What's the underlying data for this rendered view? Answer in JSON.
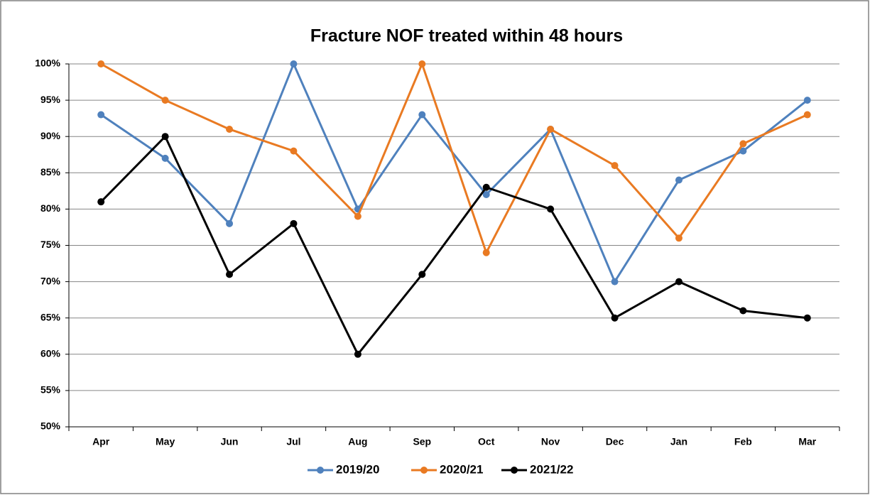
{
  "chart_data": {
    "type": "line",
    "title": "Fracture NOF treated within 48 hours",
    "categories": [
      "Apr",
      "May",
      "Jun",
      "Jul",
      "Aug",
      "Sep",
      "Oct",
      "Nov",
      "Dec",
      "Jan",
      "Feb",
      "Mar"
    ],
    "series": [
      {
        "name": "2019/20",
        "color": "#4f81bd",
        "values": [
          93,
          87,
          78,
          100,
          80,
          93,
          82,
          91,
          70,
          84,
          88,
          95
        ]
      },
      {
        "name": "2020/21",
        "color": "#e97a22",
        "values": [
          100,
          95,
          91,
          88,
          79,
          100,
          74,
          91,
          86,
          76,
          89,
          93
        ]
      },
      {
        "name": "2021/22",
        "color": "#000000",
        "values": [
          81,
          90,
          71,
          78,
          60,
          71,
          83,
          80,
          65,
          70,
          66,
          65
        ]
      }
    ],
    "ylim": [
      50,
      100
    ],
    "yticks": [
      {
        "value": 50,
        "label": "50%"
      },
      {
        "value": 55,
        "label": "55%"
      },
      {
        "value": 60,
        "label": "60%"
      },
      {
        "value": 65,
        "label": "65%"
      },
      {
        "value": 70,
        "label": "70%"
      },
      {
        "value": 75,
        "label": "75%"
      },
      {
        "value": 80,
        "label": "80%"
      },
      {
        "value": 85,
        "label": "85%"
      },
      {
        "value": 90,
        "label": "90%"
      },
      {
        "value": 95,
        "label": "95%"
      },
      {
        "value": 100,
        "label": "100%"
      }
    ],
    "grid": true,
    "legend": "bottom"
  }
}
